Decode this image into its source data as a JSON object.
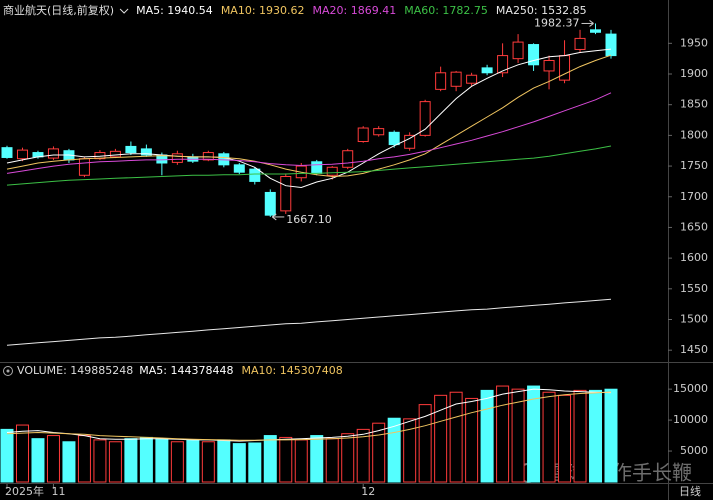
{
  "chart_data": [
    {
      "type": "candlestick",
      "title": "商业航天(日线,前复权)",
      "categories": [
        "2025年",
        null,
        null,
        "11",
        null,
        null,
        null,
        null,
        null,
        null,
        null,
        null,
        null,
        null,
        null,
        null,
        null,
        null,
        null,
        null,
        null,
        null,
        null,
        "12",
        null,
        null,
        null,
        null,
        null,
        null,
        null,
        null,
        null,
        null,
        null,
        null,
        null,
        null,
        null,
        null
      ],
      "open": [
        1780,
        1762,
        1772,
        1763,
        1775,
        1735,
        1762,
        1765,
        1782,
        1778,
        1768,
        1756,
        1765,
        1760,
        1770,
        1752,
        1745,
        1707,
        1677,
        1731,
        1757,
        1735,
        1748,
        1790,
        1801,
        1805,
        1779,
        1800,
        1875,
        1880,
        1885,
        1910,
        1902,
        1925,
        1948,
        1905,
        1890,
        1940,
        1972,
        1965
      ],
      "high": [
        1783,
        1780,
        1775,
        1782,
        1778,
        1765,
        1776,
        1778,
        1790,
        1785,
        1772,
        1775,
        1770,
        1775,
        1773,
        1755,
        1748,
        1712,
        1738,
        1755,
        1760,
        1750,
        1778,
        1815,
        1815,
        1808,
        1805,
        1858,
        1912,
        1905,
        1902,
        1915,
        1950,
        1965,
        1950,
        1930,
        1955,
        1972,
        1982.37,
        1972
      ],
      "low": [
        1762,
        1758,
        1762,
        1760,
        1755,
        1732,
        1760,
        1763,
        1768,
        1765,
        1735,
        1752,
        1755,
        1758,
        1748,
        1737,
        1720,
        1667.1,
        1672,
        1725,
        1735,
        1728,
        1745,
        1788,
        1798,
        1780,
        1775,
        1798,
        1872,
        1872,
        1880,
        1898,
        1895,
        1918,
        1905,
        1875,
        1885,
        1935,
        1965,
        1925
      ],
      "close": [
        1764,
        1776,
        1765,
        1778,
        1760,
        1762,
        1772,
        1774,
        1772,
        1768,
        1755,
        1770,
        1758,
        1772,
        1752,
        1740,
        1725,
        1670,
        1733,
        1750,
        1738,
        1748,
        1775,
        1812,
        1811,
        1785,
        1800,
        1855,
        1902,
        1903,
        1898,
        1902,
        1930,
        1952,
        1915,
        1922,
        1930,
        1958,
        1968,
        1930
      ],
      "up_color": "#ff3b3b",
      "down_color": "#54ffff",
      "lines": [
        {
          "legend": "MA5: 1940.54",
          "color": "#ffffff",
          "values": [
            1755,
            1760,
            1765,
            1768,
            1768,
            1765,
            1766,
            1768,
            1770,
            1770,
            1768,
            1766,
            1765,
            1765,
            1764,
            1758,
            1748,
            1730,
            1718,
            1715,
            1724,
            1730,
            1740,
            1755,
            1770,
            1783,
            1795,
            1810,
            1835,
            1860,
            1880,
            1893,
            1905,
            1915,
            1922,
            1928,
            1930,
            1935,
            1938,
            1940.54
          ]
        },
        {
          "legend": "MA10: 1930.62",
          "color": "#f0c560",
          "values": [
            1745,
            1750,
            1755,
            1758,
            1760,
            1762,
            1763,
            1764,
            1765,
            1766,
            1767,
            1766,
            1765,
            1765,
            1764,
            1762,
            1758,
            1752,
            1745,
            1740,
            1736,
            1733,
            1734,
            1738,
            1745,
            1752,
            1760,
            1770,
            1785,
            1800,
            1815,
            1830,
            1845,
            1862,
            1877,
            1888,
            1900,
            1912,
            1922,
            1930.62
          ]
        },
        {
          "legend": "MA20: 1869.41",
          "color": "#d84ad8",
          "values": [
            1738,
            1742,
            1746,
            1750,
            1753,
            1755,
            1757,
            1758,
            1759,
            1760,
            1760,
            1761,
            1761,
            1761,
            1760,
            1759,
            1757,
            1754,
            1752,
            1751,
            1752,
            1753,
            1755,
            1758,
            1762,
            1765,
            1769,
            1774,
            1780,
            1786,
            1792,
            1799,
            1806,
            1814,
            1822,
            1831,
            1840,
            1849,
            1858,
            1869.41
          ]
        },
        {
          "legend": "MA60: 1782.75",
          "color": "#3cc046",
          "values": [
            1719,
            1721,
            1723,
            1725,
            1727,
            1728,
            1729,
            1730,
            1731,
            1732,
            1733,
            1734,
            1735,
            1735,
            1736,
            1736,
            1737,
            1737,
            1737,
            1738,
            1738,
            1739,
            1740,
            1741,
            1743,
            1745,
            1747,
            1749,
            1751,
            1753,
            1755,
            1757,
            1759,
            1761,
            1763,
            1766,
            1770,
            1774,
            1778,
            1782.75
          ]
        },
        {
          "legend": "MA250: 1532.85",
          "color": "#e8e8e8",
          "values": [
            1458,
            1460,
            1462,
            1464,
            1466,
            1468,
            1470,
            1471,
            1473,
            1475,
            1477,
            1479,
            1481,
            1483,
            1485,
            1487,
            1489,
            1491,
            1493,
            1494,
            1496,
            1498,
            1500,
            1502,
            1504,
            1506,
            1508,
            1510,
            1512,
            1514,
            1516,
            1517,
            1519,
            1521,
            1523,
            1525,
            1527,
            1529,
            1531,
            1532.85
          ]
        }
      ],
      "annotations": [
        {
          "value": 1982.37,
          "label": "1982.37"
        },
        {
          "value": 1667.1,
          "label": "1667.10"
        }
      ],
      "ylim": [
        1434,
        1988
      ],
      "yticks": [
        1450,
        1500,
        1550,
        1600,
        1650,
        1700,
        1750,
        1800,
        1850,
        1900,
        1950
      ],
      "period_label": "日线",
      "watermark": [
        "雪球",
        "作手长鞭"
      ]
    },
    {
      "type": "bar",
      "title": "VOLUME: 149885248",
      "values": [
        8500,
        9200,
        7000,
        7500,
        6500,
        7500,
        6800,
        6500,
        7000,
        7200,
        7000,
        6500,
        6800,
        6500,
        6800,
        6200,
        6300,
        7500,
        7200,
        6800,
        7500,
        7000,
        7800,
        8500,
        9500,
        10300,
        10200,
        12500,
        14000,
        14500,
        13500,
        14800,
        15500,
        15000,
        15500,
        14500,
        14000,
        14800,
        14800,
        14988.5
      ],
      "lines": [
        {
          "legend": "MA5: 144378448",
          "color": "#ffffff",
          "values": [
            8000,
            8200,
            8300,
            8000,
            7800,
            7500,
            7000,
            6900,
            6900,
            7000,
            7000,
            6900,
            6800,
            6800,
            6700,
            6600,
            6700,
            6800,
            6900,
            7000,
            7100,
            7200,
            7400,
            7700,
            8300,
            9000,
            9800,
            10600,
            11600,
            12600,
            13000,
            13500,
            14200,
            14600,
            15000,
            14900,
            14700,
            14600,
            14500,
            14437.8
          ]
        },
        {
          "legend": "MA10: 145307408",
          "color": "#f0c560",
          "values": [
            7800,
            7900,
            8000,
            7900,
            7800,
            7700,
            7500,
            7400,
            7300,
            7200,
            7100,
            7000,
            6900,
            6850,
            6800,
            6750,
            6750,
            6800,
            6800,
            6850,
            6900,
            7000,
            7100,
            7300,
            7600,
            8000,
            8500,
            9100,
            9800,
            10500,
            11200,
            11800,
            12400,
            12900,
            13400,
            13800,
            14100,
            14300,
            14400,
            14530.7
          ]
        }
      ],
      "ylim": [
        0,
        16800
      ],
      "yticks": [
        5000,
        10000,
        15000
      ]
    }
  ]
}
